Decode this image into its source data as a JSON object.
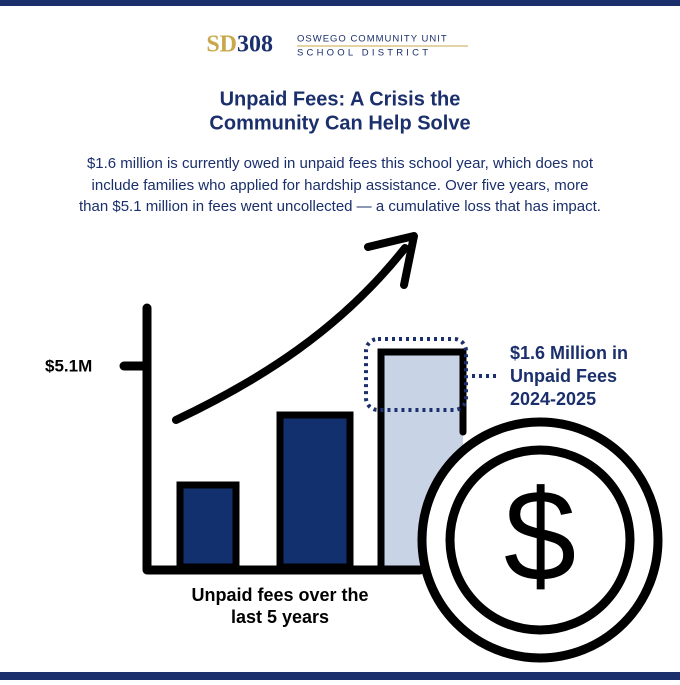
{
  "logo": {
    "mark_left": "SD",
    "mark_right": "308",
    "line1": "OSWEGO COMMUNITY UNIT",
    "line2": "SCHOOL DISTRICT"
  },
  "title": {
    "lines": [
      "Unpaid Fees: A Crisis the",
      "Community Can Help Solve"
    ]
  },
  "body": {
    "lines": [
      "$1.6 million is currently owed in unpaid fees this school year, which does not",
      "include families who applied for hardship assistance. Over five years, more",
      "than $5.1 million in fees went uncollected — a cumulative loss that has impact."
    ]
  },
  "graphic": {
    "axis_label": "$5.1M",
    "callout": [
      "$1.6 Million in",
      "Unpaid Fees",
      "2024-2025"
    ],
    "caption": [
      "Unpaid fees over the",
      "last 5 years"
    ],
    "coin_symbol": "$"
  }
}
